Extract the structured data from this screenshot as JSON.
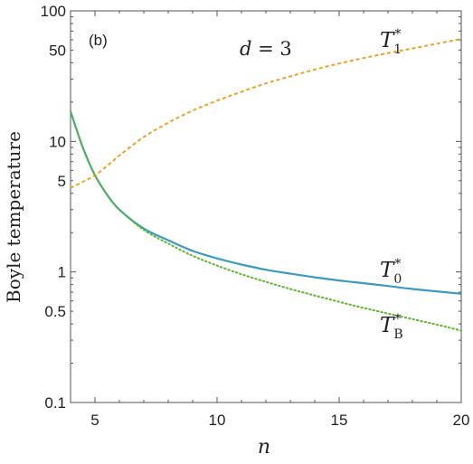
{
  "chart_data": {
    "type": "line",
    "panel_tag": "(b)",
    "annotation": {
      "var": "d",
      "eq": " = 3"
    },
    "xlabel": "n",
    "ylabel": "Boyle temperature",
    "xlim": [
      4,
      20
    ],
    "ylim": [
      0.1,
      100
    ],
    "yscale": "log",
    "xticks": [
      5,
      10,
      15,
      20
    ],
    "xtick_labels": [
      "5",
      "10",
      "15",
      "20"
    ],
    "yticks": [
      0.1,
      0.5,
      1,
      5,
      10,
      50,
      100
    ],
    "ytick_labels": [
      "0.1",
      "0.5",
      "1",
      "5",
      "10",
      "50",
      "100"
    ],
    "grid": false,
    "series": [
      {
        "id": "T0",
        "label_main": "T",
        "label_sup": "*",
        "label_sub": "0",
        "color": "#3b9ac4",
        "style": "solid",
        "x": [
          4,
          4.5,
          5,
          5.5,
          6,
          7,
          8,
          9,
          10,
          11,
          12,
          13,
          14,
          15,
          16,
          17,
          18,
          19,
          20
        ],
        "y": [
          17,
          9.0,
          5.5,
          3.9,
          3.0,
          2.15,
          1.75,
          1.45,
          1.27,
          1.14,
          1.04,
          0.97,
          0.91,
          0.86,
          0.82,
          0.78,
          0.74,
          0.71,
          0.68
        ]
      },
      {
        "id": "T1",
        "label_main": "T",
        "label_sup": "*",
        "label_sub": "1",
        "color": "#f0a022",
        "style": "dashed",
        "x": [
          4,
          4.5,
          5,
          5.5,
          6,
          7,
          8,
          9,
          10,
          11,
          12,
          13,
          14,
          15,
          16,
          17,
          18,
          19,
          20
        ],
        "y": [
          4.4,
          4.9,
          5.5,
          6.5,
          7.8,
          10.8,
          13.9,
          17.2,
          20.5,
          24.0,
          27.8,
          31.5,
          35.5,
          39.5,
          43.5,
          47.5,
          51.5,
          56.0,
          61.0
        ]
      },
      {
        "id": "TB",
        "label_main": "T",
        "label_sup": "*",
        "label_sub": "B",
        "color": "#5cb82e",
        "style": "dotted",
        "x": [
          4,
          4.5,
          5,
          5.5,
          6,
          7,
          8,
          9,
          10,
          11,
          12,
          13,
          14,
          15,
          16,
          17,
          18,
          19,
          20
        ],
        "y": [
          17,
          9.0,
          5.5,
          3.9,
          3.0,
          2.1,
          1.65,
          1.33,
          1.12,
          0.96,
          0.84,
          0.74,
          0.66,
          0.59,
          0.53,
          0.48,
          0.435,
          0.395,
          0.355
        ]
      }
    ]
  }
}
